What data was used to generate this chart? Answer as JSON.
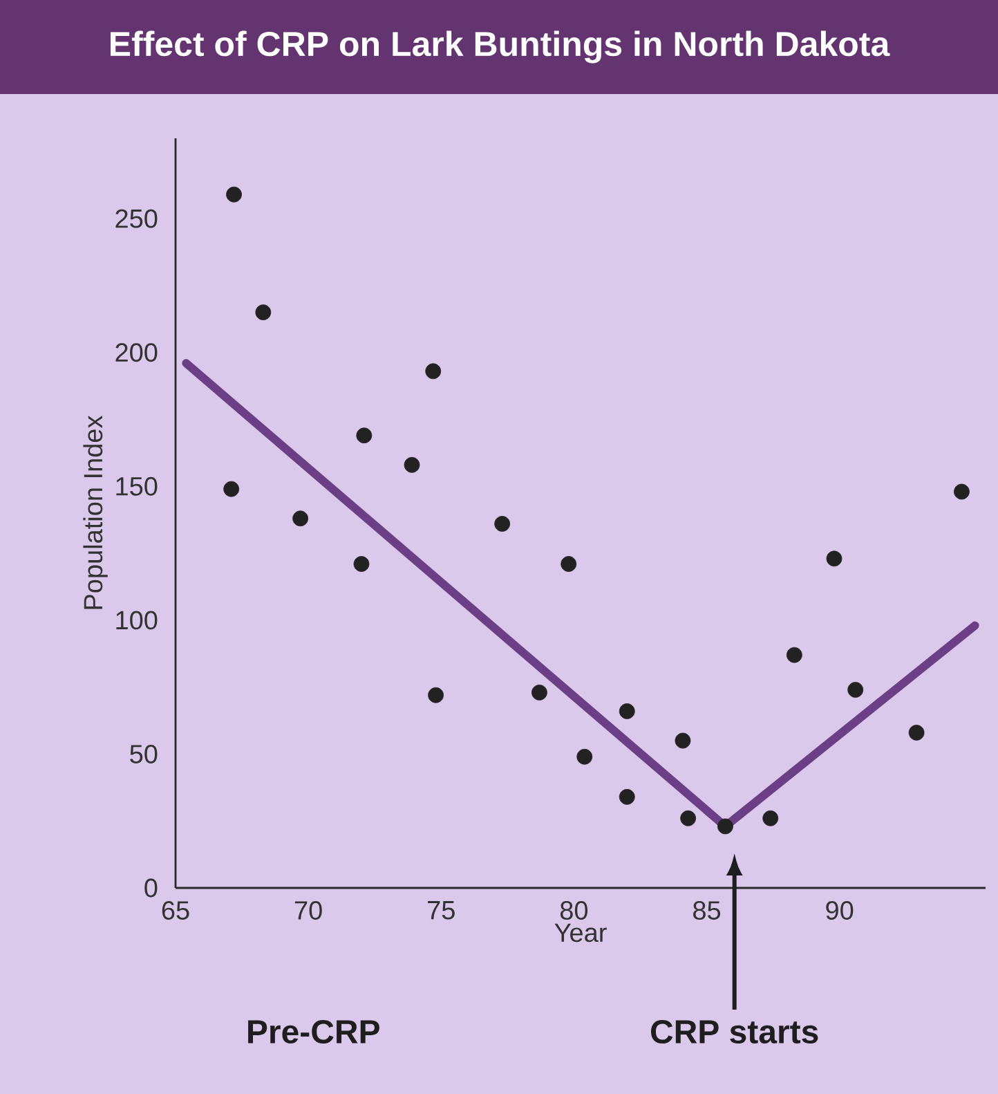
{
  "chart_data": {
    "type": "scatter",
    "title": "Effect of CRP on Lark Buntings in North Dakota",
    "xlabel": "Year",
    "ylabel": "Population Index",
    "xlim": [
      65,
      95.5
    ],
    "ylim": [
      0,
      280
    ],
    "xticks": [
      65,
      70,
      75,
      80,
      85,
      90
    ],
    "yticks": [
      0,
      50,
      100,
      150,
      200,
      250
    ],
    "series": [
      {
        "type": "scatter",
        "color": "#222222",
        "marker": "circle",
        "x": [
          67.2,
          68.3,
          67.1,
          69.7,
          72.0,
          72.1,
          73.9,
          74.7,
          74.8,
          77.3,
          78.7,
          79.8,
          80.4,
          82.0,
          82.0,
          84.1,
          84.3,
          85.7,
          87.4,
          88.3,
          89.8,
          90.6,
          92.9,
          94.6
        ],
        "values": [
          259,
          215,
          149,
          138,
          121,
          169,
          158,
          193,
          72,
          136,
          73,
          121,
          49,
          66,
          34,
          55,
          26,
          23,
          26,
          87,
          123,
          74,
          58,
          148
        ]
      },
      {
        "type": "line",
        "color": "#6b3f85",
        "marker": "none",
        "line_style": "solid",
        "x": [
          65.4,
          85.7,
          95.1
        ],
        "values": [
          196,
          23,
          98
        ]
      }
    ],
    "annotations": [
      "Pre-CRP",
      "CRP starts"
    ]
  }
}
